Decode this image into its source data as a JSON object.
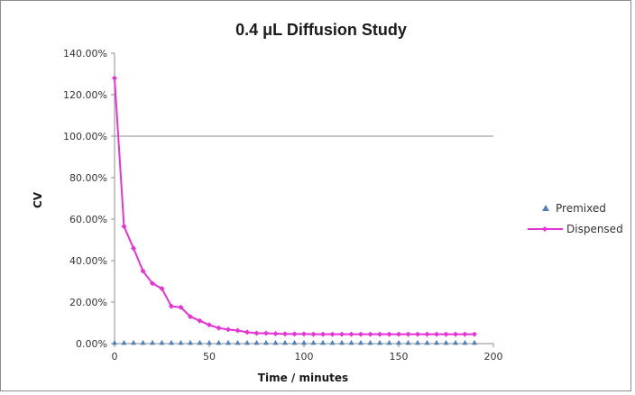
{
  "chart_data": {
    "type": "line",
    "title": "0.4 μL Diffusion Study",
    "xlabel": "Time / minutes",
    "ylabel": "CV",
    "xlim": [
      0,
      200
    ],
    "ylim": [
      0,
      1.4
    ],
    "x_ticks": [
      "0",
      "50",
      "100",
      "150",
      "200"
    ],
    "y_ticks": [
      "0.00%",
      "20.00%",
      "40.00%",
      "60.00%",
      "80.00%",
      "100.00%",
      "120.00%",
      "140.00%"
    ],
    "grid": "horizontal line at 100% only",
    "legend_position": "right",
    "x": [
      0,
      5,
      10,
      15,
      20,
      25,
      30,
      35,
      40,
      45,
      50,
      55,
      60,
      65,
      70,
      75,
      80,
      85,
      90,
      95,
      100,
      105,
      110,
      115,
      120,
      125,
      130,
      135,
      140,
      145,
      150,
      155,
      160,
      165,
      170,
      175,
      180,
      185,
      190
    ],
    "series": [
      {
        "name": "Premixed",
        "color": "#4f81bd",
        "marker": "triangle",
        "values": [
          0.005,
          0.005,
          0.005,
          0.005,
          0.005,
          0.005,
          0.005,
          0.005,
          0.005,
          0.005,
          0.005,
          0.005,
          0.005,
          0.005,
          0.005,
          0.005,
          0.005,
          0.005,
          0.005,
          0.005,
          0.005,
          0.005,
          0.005,
          0.005,
          0.005,
          0.005,
          0.005,
          0.005,
          0.005,
          0.005,
          0.005,
          0.005,
          0.005,
          0.005,
          0.005,
          0.005,
          0.005,
          0.005,
          0.005
        ]
      },
      {
        "name": "Dispensed",
        "color": "#e633d6",
        "marker": "diamond",
        "values": [
          1.28,
          0.565,
          0.46,
          0.35,
          0.29,
          0.265,
          0.18,
          0.175,
          0.13,
          0.11,
          0.09,
          0.075,
          0.068,
          0.063,
          0.055,
          0.05,
          0.05,
          0.048,
          0.047,
          0.046,
          0.046,
          0.045,
          0.045,
          0.045,
          0.045,
          0.045,
          0.045,
          0.045,
          0.045,
          0.045,
          0.045,
          0.045,
          0.045,
          0.045,
          0.045,
          0.045,
          0.045,
          0.045,
          0.045
        ]
      }
    ]
  }
}
